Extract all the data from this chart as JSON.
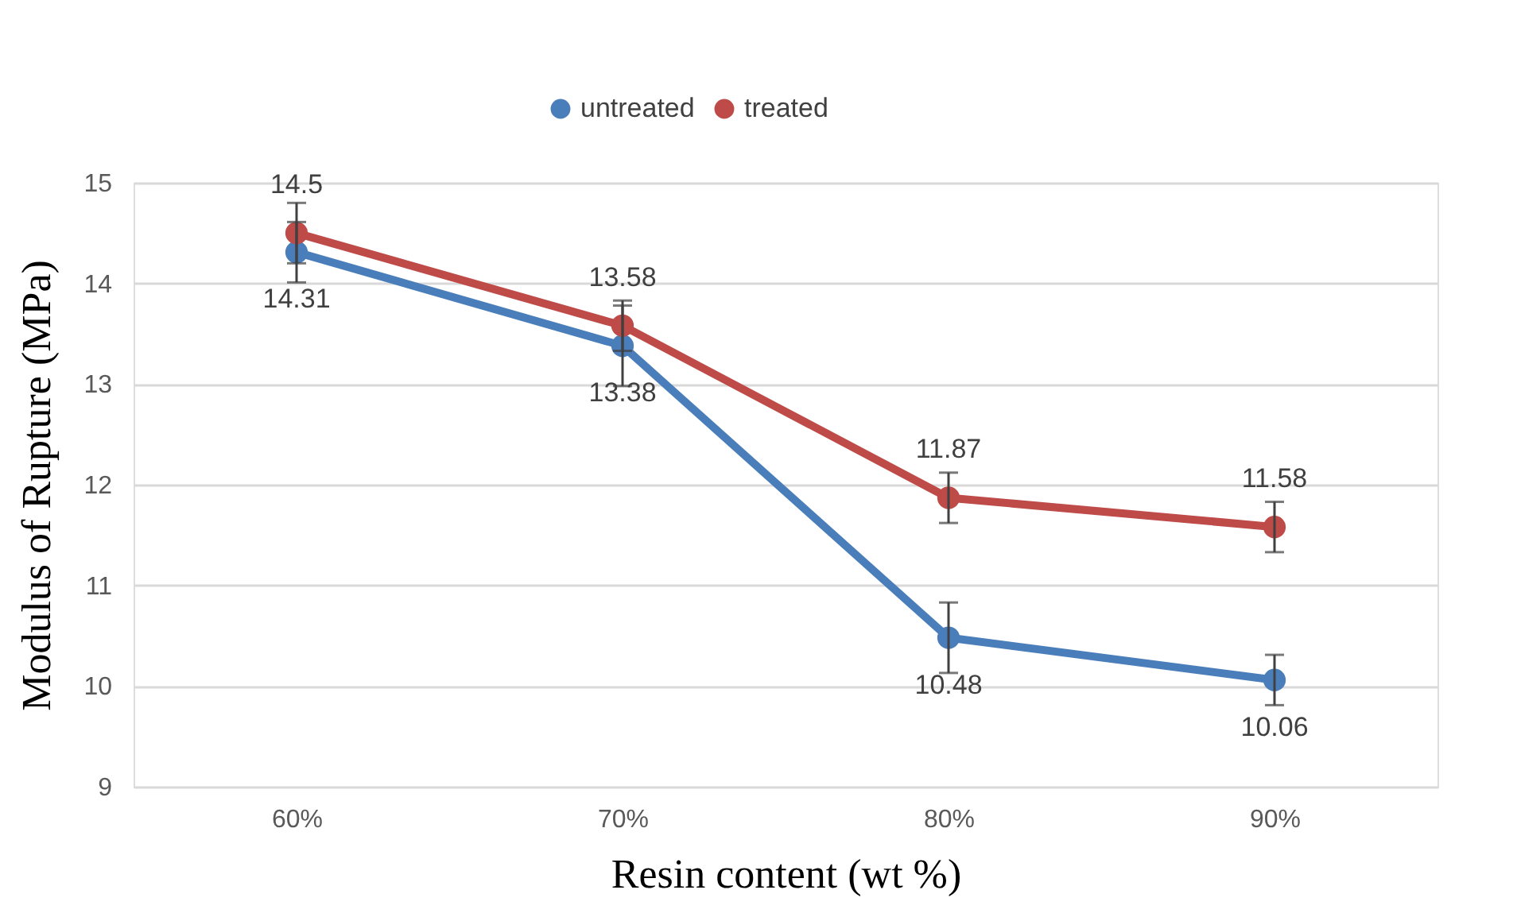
{
  "chart_data": {
    "type": "line",
    "xlabel": "Resin content (wt %)",
    "ylabel": "Modulus of Rupture (MPa)",
    "categories": [
      "60%",
      "70%",
      "80%",
      "90%"
    ],
    "series": [
      {
        "name": "untreated",
        "color": "#4a7ebb",
        "values": [
          14.31,
          13.38,
          10.48,
          10.06
        ],
        "errors": [
          0.3,
          0.4,
          0.35,
          0.25
        ]
      },
      {
        "name": "treated",
        "color": "#be4b48",
        "values": [
          14.5,
          13.58,
          11.87,
          11.58
        ],
        "errors": [
          0.3,
          0.25,
          0.25,
          0.25
        ]
      }
    ],
    "ylim": [
      9,
      15
    ],
    "yticks": [
      9,
      10,
      11,
      12,
      13,
      14,
      15
    ],
    "grid": "y",
    "legend": "top",
    "marker": "circle",
    "line_style": "solid",
    "data_labels": true
  }
}
